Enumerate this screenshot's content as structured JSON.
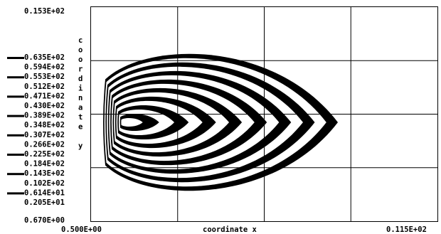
{
  "chart_data": {
    "type": "area",
    "ylabel": "coordinate y",
    "xlabel": "coordinate x",
    "x_tick_labels": [
      "0.500E+00",
      "0.115E+02"
    ],
    "y_tick_labels": [
      "0.670E+00",
      "0.153E+02"
    ],
    "xlim": [
      0.5,
      11.5
    ],
    "ylim": [
      0.67,
      15.3
    ],
    "grid": true,
    "legend_position": "left",
    "series_colors": [
      "#000000",
      "#ffffff"
    ],
    "levels": [
      "0.635E+02",
      "0.594E+02",
      "0.553E+02",
      "0.512E+02",
      "0.471E+02",
      "0.430E+02",
      "0.389E+02",
      "0.348E+02",
      "0.307E+02",
      "0.266E+02",
      "0.225E+02",
      "0.184E+02",
      "0.143E+02",
      "0.102E+02",
      "0.614E+01",
      "0.205E+01"
    ],
    "level_values": [
      63.5,
      59.4,
      55.3,
      51.2,
      47.1,
      43.0,
      38.9,
      34.8,
      30.7,
      26.6,
      22.5,
      18.4,
      14.3,
      10.2,
      6.14,
      2.05
    ],
    "level_fill": [
      "black",
      "white",
      "black",
      "white",
      "black",
      "white",
      "black",
      "white",
      "black",
      "white",
      "black",
      "white",
      "black",
      "white",
      "black",
      "white"
    ]
  }
}
